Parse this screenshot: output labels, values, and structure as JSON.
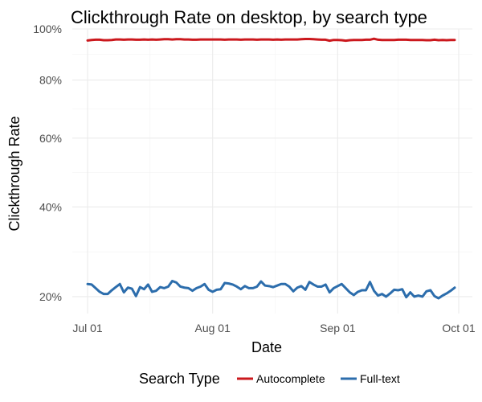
{
  "chart_data": {
    "type": "line",
    "title": "Clickthrough Rate on desktop, by search type",
    "xlabel": "Date",
    "ylabel": "Clickthrough Rate",
    "x_axis_type": "date",
    "xlim": [
      "2016-07-01",
      "2016-10-01"
    ],
    "x_ticks": [
      "2016-07-01",
      "2016-08-01",
      "2016-09-01",
      "2016-10-01"
    ],
    "x_tick_labels": [
      "Jul 01",
      "Aug 01",
      "Sep 01",
      "Oct 01"
    ],
    "y_scale": "sqrt",
    "ylim": [
      0.17,
      1.0
    ],
    "y_ticks": [
      0.2,
      0.4,
      0.6,
      0.8,
      1.0
    ],
    "y_tick_labels": [
      "20%",
      "40%",
      "60%",
      "80%",
      "100%"
    ],
    "grid": true,
    "legend": {
      "title": "Search Type",
      "position": "bottom"
    },
    "x": [
      "2016-07-01",
      "2016-07-02",
      "2016-07-03",
      "2016-07-04",
      "2016-07-05",
      "2016-07-06",
      "2016-07-07",
      "2016-07-08",
      "2016-07-09",
      "2016-07-10",
      "2016-07-11",
      "2016-07-12",
      "2016-07-13",
      "2016-07-14",
      "2016-07-15",
      "2016-07-16",
      "2016-07-17",
      "2016-07-18",
      "2016-07-19",
      "2016-07-20",
      "2016-07-21",
      "2016-07-22",
      "2016-07-23",
      "2016-07-24",
      "2016-07-25",
      "2016-07-26",
      "2016-07-27",
      "2016-07-28",
      "2016-07-29",
      "2016-07-30",
      "2016-07-31",
      "2016-08-01",
      "2016-08-02",
      "2016-08-03",
      "2016-08-04",
      "2016-08-05",
      "2016-08-06",
      "2016-08-07",
      "2016-08-08",
      "2016-08-09",
      "2016-08-10",
      "2016-08-11",
      "2016-08-12",
      "2016-08-13",
      "2016-08-14",
      "2016-08-15",
      "2016-08-16",
      "2016-08-17",
      "2016-08-18",
      "2016-08-19",
      "2016-08-20",
      "2016-08-21",
      "2016-08-22",
      "2016-08-23",
      "2016-08-24",
      "2016-08-25",
      "2016-08-26",
      "2016-08-27",
      "2016-08-28",
      "2016-08-29",
      "2016-08-30",
      "2016-08-31",
      "2016-09-01",
      "2016-09-02",
      "2016-09-03",
      "2016-09-04",
      "2016-09-05",
      "2016-09-06",
      "2016-09-07",
      "2016-09-08",
      "2016-09-09",
      "2016-09-10",
      "2016-09-11",
      "2016-09-12",
      "2016-09-13",
      "2016-09-14",
      "2016-09-15",
      "2016-09-16",
      "2016-09-17",
      "2016-09-18",
      "2016-09-19",
      "2016-09-20",
      "2016-09-21",
      "2016-09-22",
      "2016-09-23",
      "2016-09-24",
      "2016-09-25",
      "2016-09-26",
      "2016-09-27",
      "2016-09-28",
      "2016-09-29",
      "2016-09-30"
    ],
    "series": [
      {
        "name": "Autocomplete",
        "color": "#CB181D",
        "values": [
          0.953,
          0.955,
          0.956,
          0.956,
          0.954,
          0.954,
          0.955,
          0.957,
          0.957,
          0.956,
          0.957,
          0.957,
          0.956,
          0.956,
          0.957,
          0.956,
          0.957,
          0.956,
          0.957,
          0.958,
          0.958,
          0.957,
          0.958,
          0.958,
          0.957,
          0.957,
          0.956,
          0.956,
          0.957,
          0.957,
          0.957,
          0.957,
          0.957,
          0.957,
          0.956,
          0.957,
          0.957,
          0.957,
          0.956,
          0.957,
          0.957,
          0.957,
          0.956,
          0.957,
          0.957,
          0.957,
          0.956,
          0.957,
          0.956,
          0.957,
          0.957,
          0.957,
          0.957,
          0.958,
          0.959,
          0.959,
          0.958,
          0.957,
          0.956,
          0.956,
          0.952,
          0.955,
          0.955,
          0.954,
          0.952,
          0.954,
          0.955,
          0.955,
          0.955,
          0.956,
          0.956,
          0.96,
          0.956,
          0.955,
          0.955,
          0.955,
          0.955,
          0.956,
          0.956,
          0.956,
          0.955,
          0.955,
          0.955,
          0.955,
          0.954,
          0.954,
          0.956,
          0.954,
          0.955,
          0.954,
          0.955,
          0.955
        ]
      },
      {
        "name": "Full-text",
        "color": "#2C6DAC",
        "values": [
          0.224,
          0.223,
          0.216,
          0.209,
          0.205,
          0.205,
          0.212,
          0.218,
          0.224,
          0.208,
          0.217,
          0.215,
          0.201,
          0.218,
          0.214,
          0.223,
          0.209,
          0.211,
          0.218,
          0.216,
          0.219,
          0.23,
          0.227,
          0.219,
          0.217,
          0.216,
          0.211,
          0.216,
          0.219,
          0.224,
          0.213,
          0.209,
          0.213,
          0.214,
          0.226,
          0.225,
          0.223,
          0.219,
          0.214,
          0.22,
          0.216,
          0.216,
          0.219,
          0.229,
          0.221,
          0.22,
          0.218,
          0.221,
          0.224,
          0.224,
          0.219,
          0.21,
          0.217,
          0.22,
          0.213,
          0.228,
          0.223,
          0.219,
          0.219,
          0.223,
          0.208,
          0.216,
          0.22,
          0.224,
          0.216,
          0.208,
          0.203,
          0.209,
          0.212,
          0.212,
          0.228,
          0.211,
          0.202,
          0.205,
          0.2,
          0.206,
          0.213,
          0.212,
          0.214,
          0.199,
          0.208,
          0.2,
          0.202,
          0.2,
          0.21,
          0.212,
          0.201,
          0.197,
          0.202,
          0.206,
          0.211,
          0.217
        ]
      }
    ]
  }
}
